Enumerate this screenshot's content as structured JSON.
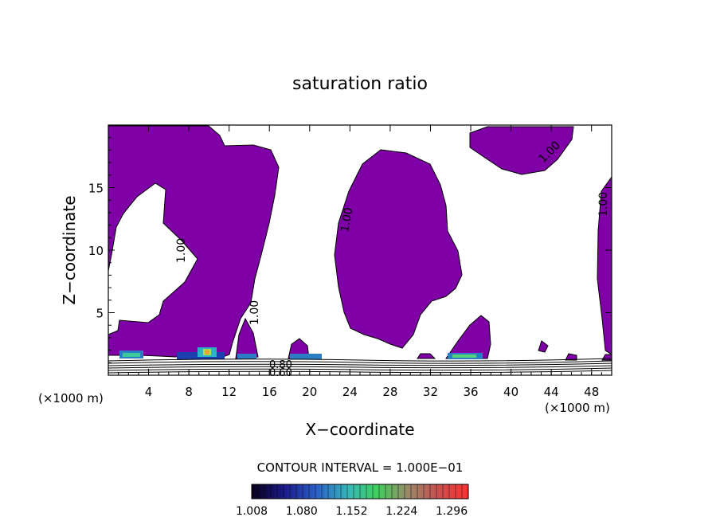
{
  "chart_data": {
    "type": "contour",
    "title": "saturation ratio",
    "xlabel": "X−coordinate",
    "ylabel": "Z−coordinate",
    "x_unit_left": "(×1000 m)",
    "x_unit_right": "(×1000 m)",
    "xlim": [
      0,
      50
    ],
    "ylim": [
      0,
      20
    ],
    "x_ticks": [
      4,
      8,
      12,
      16,
      20,
      24,
      28,
      32,
      36,
      40,
      44,
      48
    ],
    "y_ticks": [
      5,
      10,
      15
    ],
    "contour_interval_text": "CONTOUR INTERVAL = 1.000E−01",
    "contour_labels": [
      "1.00",
      "1.00",
      "1.00",
      "1.00",
      "1.00",
      "0.80",
      "0.60"
    ],
    "colorbar": {
      "tick_labels": [
        "1.008",
        "1.080",
        "1.152",
        "1.224",
        "1.296"
      ],
      "min": 1.008,
      "max": 1.32
    },
    "fill_color": "#7f00a6"
  }
}
